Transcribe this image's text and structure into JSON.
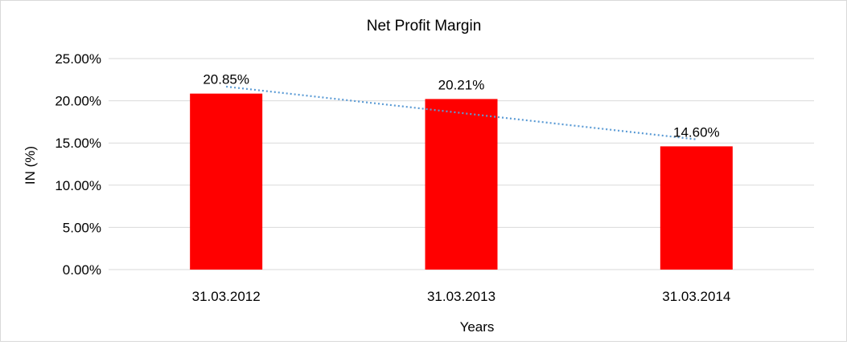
{
  "chart_data": {
    "type": "bar",
    "title": "Net Profit Margin",
    "xlabel": "Years",
    "ylabel": "IN (%)",
    "categories": [
      "31.03.2012",
      "31.03.2013",
      "31.03.2014"
    ],
    "values": [
      20.85,
      20.21,
      14.6
    ],
    "data_labels": [
      "20.85%",
      "20.21%",
      "14.60%"
    ],
    "ylim": [
      0,
      25
    ],
    "yticks": [
      0,
      5,
      10,
      15,
      20,
      25
    ],
    "ytick_labels": [
      "0.00%",
      "5.00%",
      "10.00%",
      "15.00%",
      "20.00%",
      "25.00%"
    ],
    "grid": true,
    "trendline": "linear",
    "colors": {
      "bar": "#ff0000",
      "trendline": "#5b9bd5",
      "grid": "#d9d9d9"
    }
  }
}
